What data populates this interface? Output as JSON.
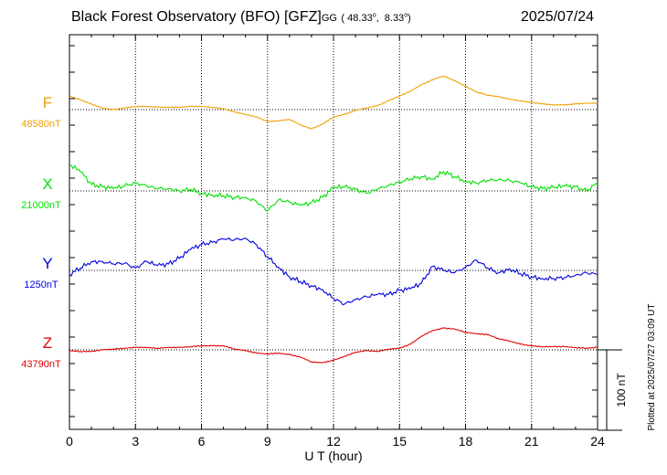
{
  "header": {
    "station": "Black Forest Observatory (BFO)",
    "institute": "[GFZ]",
    "coord_system": "GG",
    "lat": "48.33",
    "lon": "8.33",
    "degree_symbol": "o",
    "date": "2025/07/24"
  },
  "footer_note": "Plotted at 2025/07/27 03:09 UT",
  "chart_data": {
    "type": "line",
    "title": "Black Forest Observatory (BFO)",
    "xlabel": "U T (hour)",
    "xlim": [
      0,
      24
    ],
    "x_ticks": [
      "0",
      "3",
      "6",
      "9",
      "12",
      "15",
      "18",
      "21",
      "24"
    ],
    "grid": true,
    "scale_bar": {
      "label": "100 nT",
      "value_nT": 100
    },
    "x_hours": [
      0,
      0.5,
      1,
      1.5,
      2,
      2.5,
      3,
      3.5,
      4,
      4.5,
      5,
      5.5,
      6,
      6.5,
      7,
      7.5,
      8,
      8.5,
      9,
      9.5,
      10,
      10.5,
      11,
      11.5,
      12,
      12.5,
      13,
      13.5,
      14,
      14.5,
      15,
      15.5,
      16,
      16.5,
      17,
      17.5,
      18,
      18.5,
      19,
      19.5,
      20,
      20.5,
      21,
      21.5,
      22,
      22.5,
      23,
      23.5,
      24
    ],
    "series": [
      {
        "name": "F",
        "baseline_label": "48580nT",
        "color": "#f0a000",
        "values_nT_from_baseline": [
          17,
          12,
          7,
          2,
          0,
          2,
          4,
          4,
          3,
          3,
          3,
          4,
          4,
          3,
          1,
          -3,
          -6,
          -9,
          -15,
          -14,
          -12,
          -19,
          -24,
          -18,
          -9,
          -6,
          -1,
          2,
          5,
          11,
          17,
          23,
          31,
          37,
          42,
          36,
          29,
          22,
          18,
          16,
          13,
          11,
          9,
          7,
          6,
          6,
          7,
          8,
          8
        ]
      },
      {
        "name": "X",
        "baseline_label": "21000nT",
        "color": "#00e000",
        "values_nT_from_baseline": [
          33,
          24,
          8,
          5,
          3,
          6,
          10,
          6,
          3,
          3,
          0,
          2,
          -3,
          -5,
          -6,
          -8,
          -8,
          -13,
          -25,
          -11,
          -14,
          -18,
          -15,
          -8,
          4,
          5,
          2,
          -3,
          2,
          7,
          11,
          15,
          18,
          15,
          24,
          18,
          12,
          10,
          13,
          14,
          13,
          10,
          5,
          3,
          4,
          6,
          5,
          0,
          10
        ]
      },
      {
        "name": "Y",
        "baseline_label": "1250nT",
        "color": "#0000dd",
        "values_nT_from_baseline": [
          -5,
          3,
          11,
          11,
          8,
          9,
          3,
          11,
          6,
          8,
          15,
          26,
          32,
          35,
          39,
          38,
          40,
          32,
          17,
          4,
          -8,
          -14,
          -19,
          -24,
          -35,
          -42,
          -36,
          -33,
          -30,
          -30,
          -25,
          -23,
          -16,
          5,
          0,
          -3,
          4,
          13,
          3,
          -3,
          2,
          -4,
          -8,
          -10,
          -10,
          -9,
          -6,
          -3,
          -5
        ]
      },
      {
        "name": "Z",
        "baseline_label": "43790nT",
        "color": "#e00000",
        "values_nT_from_baseline": [
          -1,
          -2,
          -2,
          0,
          1,
          2,
          3,
          3,
          2,
          3,
          3,
          4,
          5,
          5,
          5,
          1,
          -1,
          -4,
          -5,
          -4,
          -6,
          -9,
          -15,
          -16,
          -13,
          -8,
          -3,
          -1,
          -2,
          1,
          2,
          7,
          17,
          24,
          27,
          26,
          22,
          20,
          19,
          14,
          11,
          7,
          5,
          4,
          4,
          4,
          3,
          2,
          3
        ]
      }
    ]
  }
}
